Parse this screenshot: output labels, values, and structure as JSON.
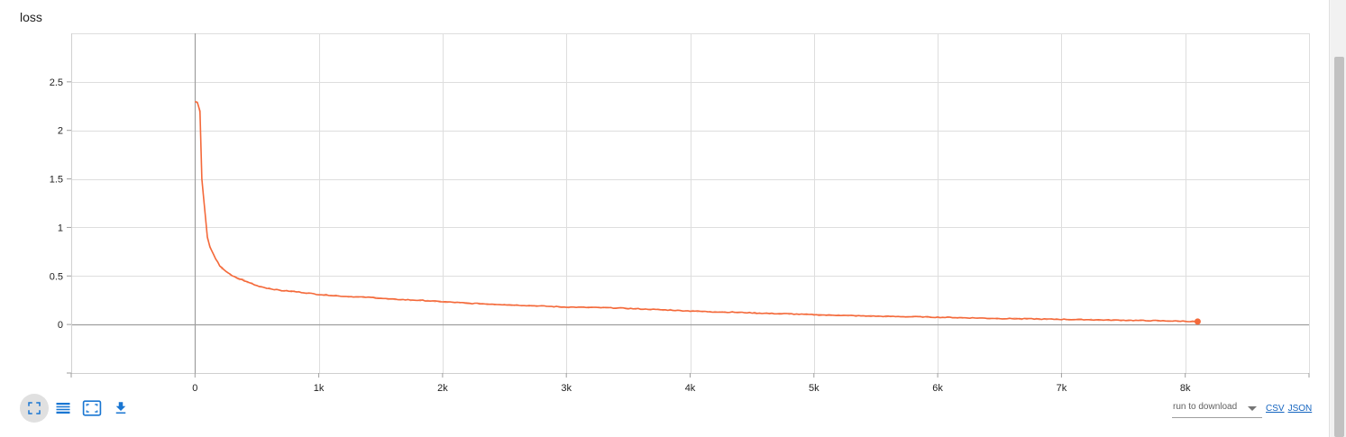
{
  "card": {
    "title": "loss"
  },
  "chart_data": {
    "type": "line",
    "title": "loss",
    "xlabel": "",
    "ylabel": "",
    "xlim": [
      -1000,
      9000
    ],
    "ylim": [
      -0.5,
      3.0
    ],
    "x_ticks": [
      0,
      1000,
      2000,
      3000,
      4000,
      5000,
      6000,
      7000,
      8000
    ],
    "x_tick_labels": [
      "0",
      "1k",
      "2k",
      "3k",
      "4k",
      "5k",
      "6k",
      "7k",
      "8k"
    ],
    "y_ticks": [
      0,
      0.5,
      1,
      1.5,
      2,
      2.5
    ],
    "y_tick_labels": [
      "0",
      "0.5",
      "1",
      "1.5",
      "2",
      "2.5"
    ],
    "grid": true,
    "line_color": "#f4693a",
    "raw_color": "#f9c2ab",
    "series": [
      {
        "x": [
          0,
          20,
          40,
          55,
          70,
          100,
          120,
          150,
          200,
          250,
          300,
          400,
          500,
          600,
          700,
          800,
          1000,
          1200,
          1400,
          1600,
          1800,
          2000,
          2200,
          2400,
          2600,
          2800,
          3000,
          3200,
          3400,
          3600,
          3800,
          4000,
          4200,
          4400,
          4600,
          4800,
          5000,
          5200,
          5400,
          5600,
          5800,
          6000,
          6200,
          6400,
          6600,
          6800,
          7000,
          7200,
          7400,
          7600,
          7800,
          8000,
          8100
        ],
        "y": [
          2.3,
          2.29,
          2.2,
          1.5,
          1.3,
          0.9,
          0.8,
          0.72,
          0.6,
          0.55,
          0.5,
          0.45,
          0.4,
          0.37,
          0.35,
          0.34,
          0.31,
          0.29,
          0.28,
          0.26,
          0.25,
          0.235,
          0.22,
          0.21,
          0.2,
          0.19,
          0.18,
          0.175,
          0.17,
          0.16,
          0.15,
          0.14,
          0.13,
          0.125,
          0.115,
          0.11,
          0.1,
          0.095,
          0.088,
          0.083,
          0.08,
          0.075,
          0.07,
          0.065,
          0.06,
          0.057,
          0.053,
          0.05,
          0.046,
          0.042,
          0.038,
          0.034,
          0.03
        ]
      }
    ]
  },
  "toolbar": {
    "fit_icon": "fullscreen-icon",
    "data_table_icon": "list-icon",
    "fit_domain_icon": "fit-domain-icon",
    "download_icon": "download-icon"
  },
  "download": {
    "run_select_label": "run to download",
    "csv_label": "CSV",
    "json_label": "JSON"
  }
}
